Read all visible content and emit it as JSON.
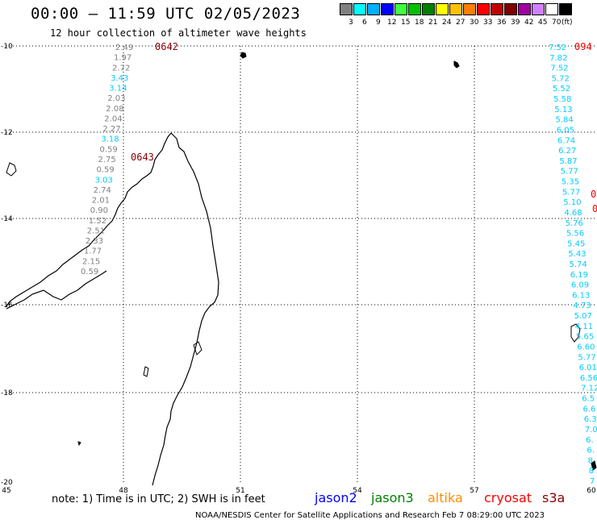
{
  "header": {
    "title": "00:00 – 11:59 UTC 02/05/2023",
    "subtitle": "12 hour collection of altimeter wave heights"
  },
  "legend": {
    "unit": "(ft)",
    "bins": [
      {
        "label": "3",
        "color": "#808080"
      },
      {
        "label": "6",
        "color": "#00ffff"
      },
      {
        "label": "9",
        "color": "#00b0ff"
      },
      {
        "label": "12",
        "color": "#0000ff"
      },
      {
        "label": "15",
        "color": "#40ff40"
      },
      {
        "label": "18",
        "color": "#00c000"
      },
      {
        "label": "21",
        "color": "#008000"
      },
      {
        "label": "24",
        "color": "#ffff00"
      },
      {
        "label": "27",
        "color": "#ffc000"
      },
      {
        "label": "30",
        "color": "#ff8000"
      },
      {
        "label": "33",
        "color": "#ff0000"
      },
      {
        "label": "36",
        "color": "#c00000"
      },
      {
        "label": "39",
        "color": "#800000"
      },
      {
        "label": "42",
        "color": "#a000a0"
      },
      {
        "label": "45",
        "color": "#d080ff"
      },
      {
        "label": "70",
        "color": "#ffffff"
      },
      {
        "label": "",
        "color": "#000000"
      }
    ]
  },
  "axes": {
    "y_ticks": [
      "-10",
      "-12",
      "-14",
      "-16",
      "-18",
      "-20"
    ],
    "x_ticks": [
      "45",
      "48",
      "51",
      "54",
      "57",
      "60"
    ]
  },
  "track_west": {
    "times": [
      {
        "text": "0642"
      },
      {
        "text": "0643"
      }
    ],
    "values": [
      {
        "v": "2.49",
        "c": "#808080"
      },
      {
        "v": "1.97",
        "c": "#808080"
      },
      {
        "v": "2.72",
        "c": "#808080"
      },
      {
        "v": "3.43",
        "c": "#00ccff"
      },
      {
        "v": "3.14",
        "c": "#00ccff"
      },
      {
        "v": "2.03",
        "c": "#808080"
      },
      {
        "v": "2.08",
        "c": "#808080"
      },
      {
        "v": "2.04",
        "c": "#808080"
      },
      {
        "v": "2.27",
        "c": "#808080"
      },
      {
        "v": "3.18",
        "c": "#00ccff"
      },
      {
        "v": "0.59",
        "c": "#808080"
      },
      {
        "v": "2.75",
        "c": "#808080"
      },
      {
        "v": "0.59",
        "c": "#808080"
      },
      {
        "v": "3.03",
        "c": "#00ccff"
      },
      {
        "v": "2.74",
        "c": "#808080"
      },
      {
        "v": "2.01",
        "c": "#808080"
      },
      {
        "v": "0.90",
        "c": "#808080"
      },
      {
        "v": "1.52",
        "c": "#808080"
      },
      {
        "v": "2.51",
        "c": "#808080"
      },
      {
        "v": "2.33",
        "c": "#808080"
      },
      {
        "v": "1.77",
        "c": "#808080"
      },
      {
        "v": "2.15",
        "c": "#808080"
      },
      {
        "v": "0.59",
        "c": "#808080"
      }
    ]
  },
  "track_east": {
    "times": [
      {
        "text": "094"
      },
      {
        "text": "0"
      },
      {
        "text": "0"
      }
    ],
    "values": [
      {
        "v": "7.52"
      },
      {
        "v": "7.82"
      },
      {
        "v": "7.52"
      },
      {
        "v": "5.72"
      },
      {
        "v": "5.52"
      },
      {
        "v": "5.58"
      },
      {
        "v": "5.13"
      },
      {
        "v": "5.84"
      },
      {
        "v": "6.05"
      },
      {
        "v": "6.74"
      },
      {
        "v": "6.27"
      },
      {
        "v": "5.87"
      },
      {
        "v": "5.77"
      },
      {
        "v": "5.35"
      },
      {
        "v": "5.77"
      },
      {
        "v": "5.10"
      },
      {
        "v": "4.68"
      },
      {
        "v": "5.76"
      },
      {
        "v": "5.56"
      },
      {
        "v": "5.45"
      },
      {
        "v": "5.43"
      },
      {
        "v": "5.74"
      },
      {
        "v": "6.19"
      },
      {
        "v": "6.09"
      },
      {
        "v": "6.13"
      },
      {
        "v": "4.73"
      },
      {
        "v": "5.07"
      },
      {
        "v": "4.11"
      },
      {
        "v": "5.65"
      },
      {
        "v": "6.60"
      },
      {
        "v": "5.77"
      },
      {
        "v": "6.01"
      },
      {
        "v": "6.56"
      },
      {
        "v": "7.12"
      },
      {
        "v": "6.5"
      },
      {
        "v": "6.6"
      },
      {
        "v": "6.3"
      },
      {
        "v": "7.0"
      },
      {
        "v": "6."
      },
      {
        "v": "6."
      },
      {
        "v": "8"
      },
      {
        "v": "8"
      },
      {
        "v": "7"
      }
    ],
    "color": "#00ccff"
  },
  "footer": {
    "note": "note: 1) Time is in UTC; 2) SWH is in feet",
    "credit": "NOAA/NESDIS Center for Satellite Applications and Research    Feb  7 08:29:00 UTC 2023",
    "satellites": [
      {
        "name": "jason2",
        "color": "#0000ff"
      },
      {
        "name": "jason3",
        "color": "#008000"
      },
      {
        "name": "altika",
        "color": "#ff8c00"
      },
      {
        "name": "cryosat",
        "color": "#ff0000"
      },
      {
        "name": "s3a",
        "color": "#8b0000"
      }
    ]
  }
}
